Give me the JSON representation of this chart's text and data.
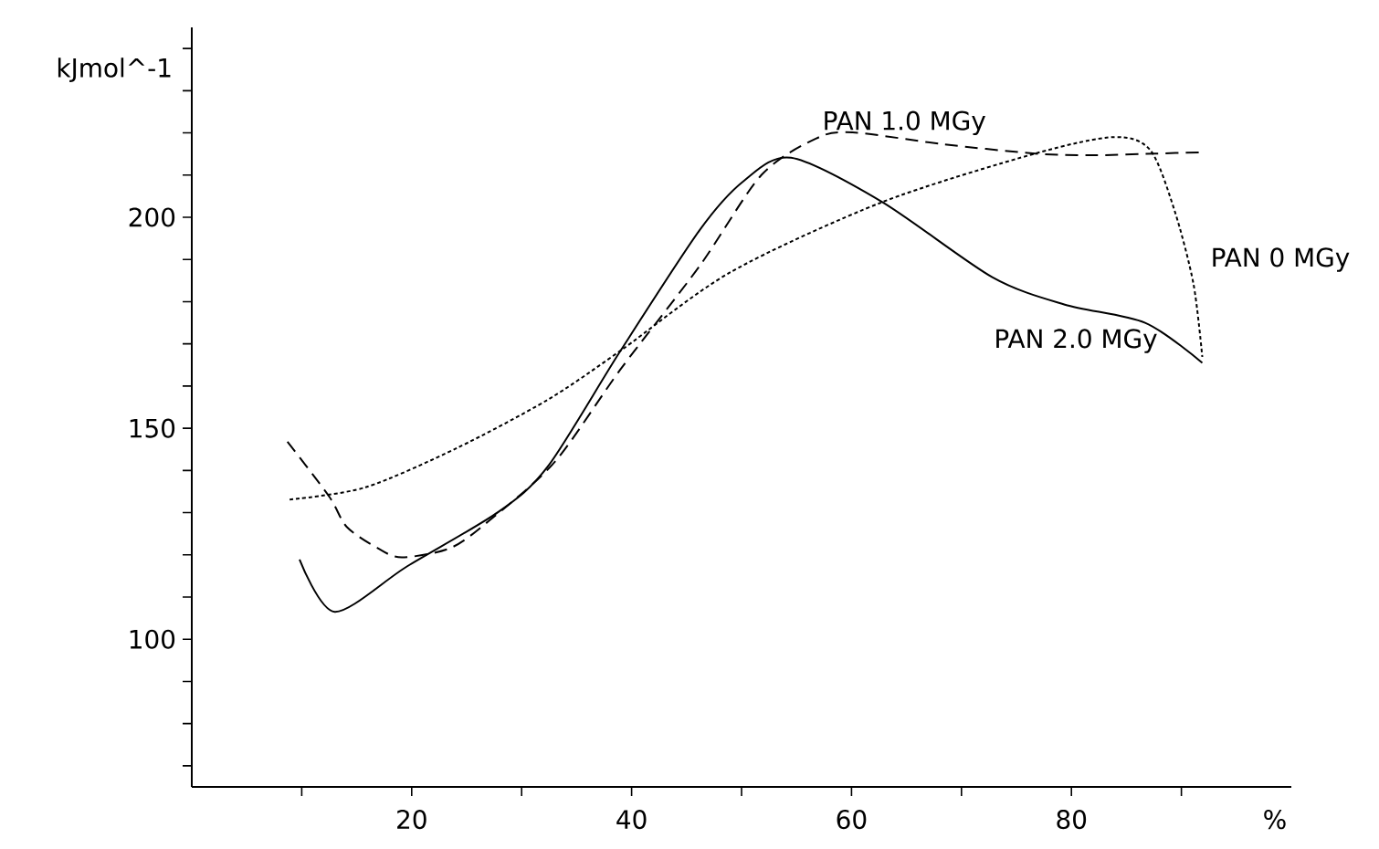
{
  "chart_data": {
    "type": "line",
    "xlabel": "%",
    "ylabel": "kJmol^-1",
    "x": [
      9.8,
      13.0,
      19.6,
      27.9,
      32.4,
      39.0,
      46.2,
      50.2,
      54.5,
      62.8,
      72.8,
      79.4,
      86.7,
      91.9
    ],
    "series": [
      {
        "name": "PAN 0 MGy",
        "color": "#000000",
        "line_style": "dotted",
        "x": [
          8.9,
          15.8,
          24.1,
          32.4,
          39.0,
          49.0,
          62.8,
          76.7,
          83.9,
          87.2,
          89.4,
          91.1,
          91.9
        ],
        "values": [
          133.1,
          136.0,
          145.3,
          156.8,
          168.4,
          187.0,
          203.6,
          215.1,
          219.0,
          215.8,
          201.4,
          184.2,
          166.9
        ]
      },
      {
        "name": "PAN 1.0 MGy",
        "color": "#000000",
        "line_style": "dashed",
        "x": [
          8.7,
          12.5,
          14.1,
          16.9,
          19.1,
          23.5,
          27.0,
          33.0,
          39.0,
          46.2,
          51.8,
          56.8,
          60.1,
          68.4,
          76.7,
          82.2,
          87.7,
          91.9
        ],
        "values": [
          146.8,
          133.8,
          126.6,
          121.6,
          119.4,
          121.6,
          128.0,
          142.0,
          164.0,
          188.5,
          210.0,
          218.7,
          220.1,
          217.3,
          215.1,
          214.7,
          215.1,
          215.4
        ]
      },
      {
        "name": "PAN 2.0 MGy",
        "color": "#000000",
        "line_style": "solid",
        "values": [
          118.9,
          106.5,
          117.3,
          130.2,
          141.0,
          168.4,
          197.0,
          208.6,
          214.1,
          203.6,
          185.8,
          179.3,
          175.0,
          165.5
        ]
      }
    ],
    "xlim": [
      0,
      100
    ],
    "ylim": [
      65,
      245
    ],
    "xticks": [
      {
        "value": 10,
        "label": null
      },
      20,
      {
        "value": 30,
        "label": null
      },
      40,
      {
        "value": 50,
        "label": null
      },
      60,
      {
        "value": 70,
        "label": null
      },
      80,
      {
        "value": 90,
        "label": null
      }
    ],
    "yticks": [
      {
        "value": 70,
        "label": null
      },
      {
        "value": 80,
        "label": null
      },
      {
        "value": 90,
        "label": null
      },
      100,
      {
        "value": 110,
        "label": null
      },
      {
        "value": 120,
        "label": null
      },
      {
        "value": 130,
        "label": null
      },
      {
        "value": 140,
        "label": null
      },
      150,
      {
        "value": 160,
        "label": null
      },
      {
        "value": 170,
        "label": null
      },
      {
        "value": 180,
        "label": null
      },
      {
        "value": 190,
        "label": null
      },
      200,
      {
        "value": 210,
        "label": null
      },
      {
        "value": 220,
        "label": null
      },
      {
        "value": 230,
        "label": null
      },
      {
        "value": 240,
        "label": null
      }
    ],
    "grid": false,
    "marker": "none"
  }
}
